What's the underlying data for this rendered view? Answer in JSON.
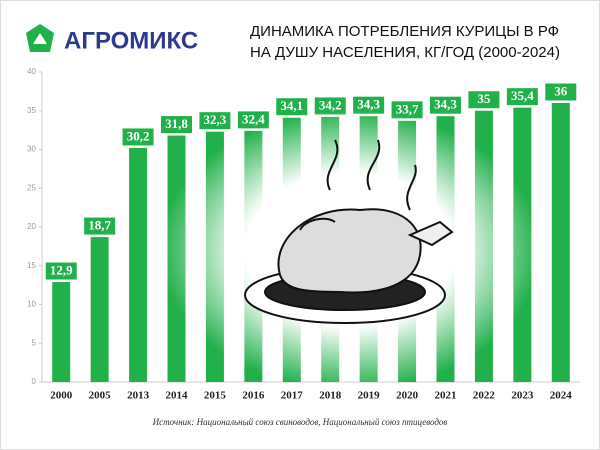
{
  "brand": "АГРОМИКС",
  "source": "Источник: Национальный союз свиноводов, Национальный союз птицеводов",
  "chart_data": {
    "type": "bar",
    "title": [
      "ДИНАМИКА ПОТРЕБЛЕНИЯ КУРИЦЫ В РФ",
      "НА ДУШУ НАСЕЛЕНИЯ, КГ/ГОД (2000-2024)"
    ],
    "categories": [
      "2000",
      "2005",
      "2013",
      "2014",
      "2015",
      "2016",
      "2017",
      "2018",
      "2019",
      "2020",
      "2021",
      "2022",
      "2023",
      "2024"
    ],
    "values": [
      12.9,
      18.7,
      30.2,
      31.8,
      32.3,
      32.4,
      34.1,
      34.2,
      34.3,
      33.7,
      34.3,
      35,
      35.4,
      36
    ],
    "value_labels": [
      "12,9",
      "18,7",
      "30,2",
      "31,8",
      "32,3",
      "32,4",
      "34,1",
      "34,2",
      "34,3",
      "33,7",
      "34,3",
      "35",
      "35,4",
      "36"
    ],
    "color": "#22b04b",
    "ylim": [
      0,
      40
    ],
    "yticks": [
      0,
      5,
      10,
      15,
      20,
      25,
      30,
      35,
      40
    ],
    "grid": false
  }
}
